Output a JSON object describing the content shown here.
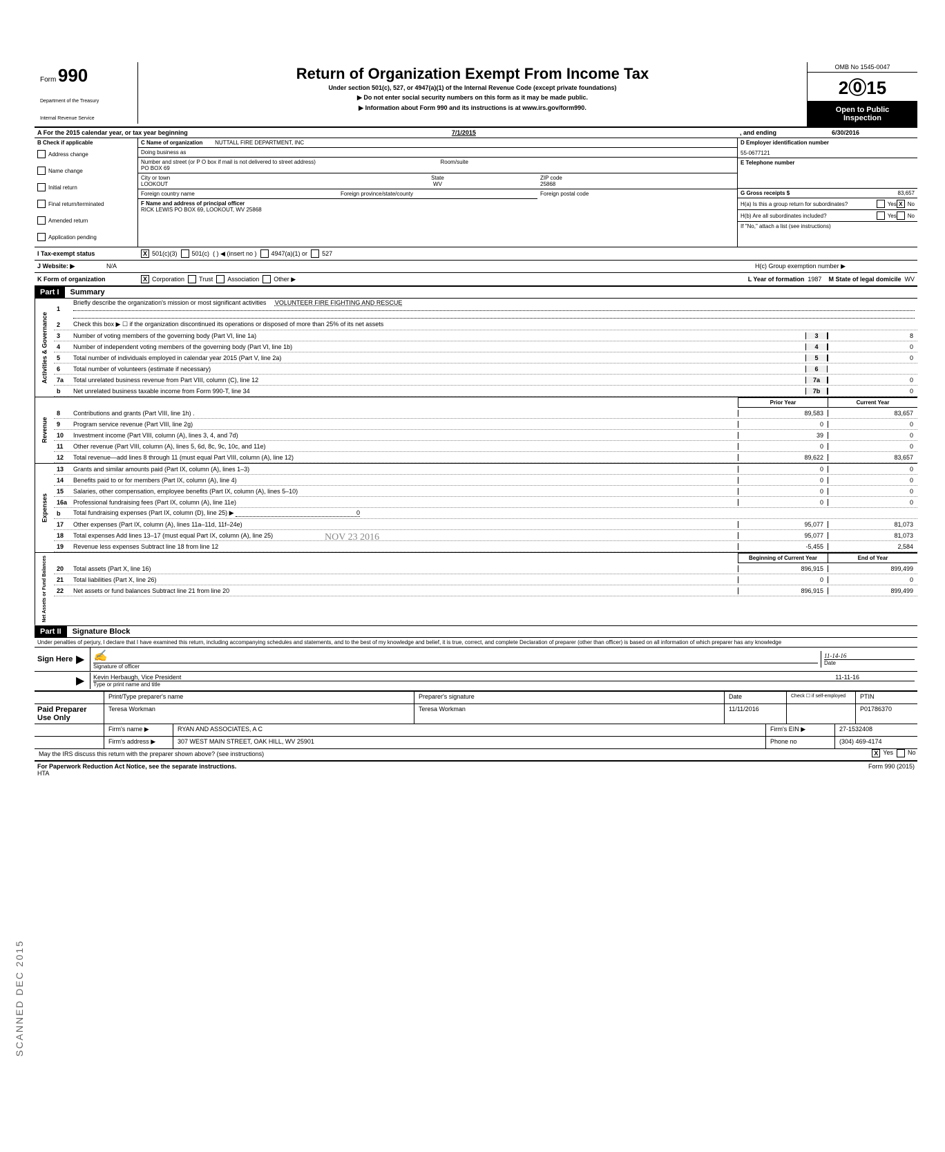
{
  "form": {
    "number": "990",
    "prefix": "Form",
    "title": "Return of Organization Exempt From Income Tax",
    "subtitle": "Under section 501(c), 527, or 4947(a)(1) of the Internal Revenue Code (except private foundations)",
    "instr1": "▶  Do not enter social security numbers on this form as it may be made public.",
    "instr2": "▶  Information about Form 990 and its instructions is at www.irs.gov/form990.",
    "dept1": "Department of the Treasury",
    "dept2": "Internal Revenue Service",
    "omb": "OMB No 1545-0047",
    "year": "2015",
    "year_outline": "2⓪15",
    "open1": "Open to Public",
    "open2": "Inspection"
  },
  "rowA": {
    "label": "A  For the 2015 calendar year, or tax year beginning",
    "begin": "7/1/2015",
    "mid": ", and ending",
    "end": "6/30/2016"
  },
  "B": {
    "header": "B  Check if applicable",
    "items": [
      "Address change",
      "Name change",
      "Initial return",
      "Final return/terminated",
      "Amended return",
      "Application pending"
    ]
  },
  "C": {
    "name_label": "C  Name of organization",
    "name": "NUTTALL FIRE DEPARTMENT, INC",
    "dba_label": "Doing business as",
    "dba": "",
    "addr_label": "Number and street (or P O  box if mail is not delivered to street address)",
    "addr": "PO BOX 69",
    "room_label": "Room/suite",
    "city_label": "City or town",
    "city": "LOOKOUT",
    "state_label": "State",
    "state": "WV",
    "zip_label": "ZIP code",
    "zip": "25868",
    "foreign_country": "Foreign country name",
    "foreign_prov": "Foreign province/state/county",
    "foreign_postal": "Foreign postal code"
  },
  "D": {
    "label": "D  Employer identification number",
    "ein": "55-0677121",
    "E_label": "E  Telephone number",
    "G_label": "G  Gross receipts $",
    "G_value": "83,657"
  },
  "F": {
    "label": "F  Name and address of principal officer",
    "value": "RICK LEWIS PO BOX 69, LOOKOUT, WV  25868"
  },
  "H": {
    "a": "H(a) Is this a group return for subordinates?",
    "a_yes": "Yes",
    "a_no": "No",
    "a_checked": "X",
    "b": "H(b) Are all subordinates included?",
    "b_yes": "Yes",
    "b_no": "No",
    "b_note": "If \"No,\" attach a list (see instructions)",
    "c": "H(c) Group exemption number ▶"
  },
  "I": {
    "label": "I    Tax-exempt status",
    "c3_checked": "X",
    "items": [
      "501(c)(3)",
      "501(c)",
      "(          ) ◀ (insert no )",
      "4947(a)(1) or",
      "527"
    ]
  },
  "J": {
    "label": "J  Website: ▶",
    "value": "N/A"
  },
  "K": {
    "label": "K  Form of organization",
    "corp_checked": "X",
    "items": [
      "Corporation",
      "Trust",
      "Association",
      "Other ▶"
    ],
    "L_label": "L Year of formation",
    "L_value": "1987",
    "M_label": "M State of legal domicile",
    "M_value": "WV"
  },
  "part1": {
    "label": "Part I",
    "title": "Summary"
  },
  "summary": {
    "line1_label": "Briefly describe the organization's mission or most significant activities",
    "line1_value": "VOLUNTEER FIRE FIGHTING AND RESCUE",
    "line2": "Check this box  ▶ ☐  if the organization discontinued its operations or disposed of more than 25% of its net assets",
    "lines_gov": [
      {
        "n": "3",
        "t": "Number of voting members of the governing body (Part VI, line 1a)",
        "box": "3",
        "v": "8"
      },
      {
        "n": "4",
        "t": "Number of independent voting members of the governing body (Part VI, line 1b)",
        "box": "4",
        "v": "0"
      },
      {
        "n": "5",
        "t": "Total number of individuals employed in calendar year 2015 (Part V, line 2a)",
        "box": "5",
        "v": "0"
      },
      {
        "n": "6",
        "t": "Total number of volunteers (estimate if necessary)",
        "box": "6",
        "v": ""
      },
      {
        "n": "7a",
        "t": "Total unrelated business revenue from Part VIII, column (C), line 12",
        "box": "7a",
        "v": "0"
      },
      {
        "n": "b",
        "t": "Net unrelated business taxable income from Form 990-T, line 34",
        "box": "7b",
        "v": "0"
      }
    ],
    "col_prior": "Prior Year",
    "col_current": "Current Year",
    "lines_rev": [
      {
        "n": "8",
        "t": "Contributions and grants (Part VIII, line 1h) .",
        "p": "89,583",
        "c": "83,657"
      },
      {
        "n": "9",
        "t": "Program service revenue (Part VIII, line 2g)",
        "p": "0",
        "c": "0"
      },
      {
        "n": "10",
        "t": "Investment income (Part VIII, column (A), lines 3, 4, and 7d)",
        "p": "39",
        "c": "0"
      },
      {
        "n": "11",
        "t": "Other revenue (Part VIII, column (A), lines 5, 6d, 8c, 9c, 10c, and 11e)",
        "p": "0",
        "c": "0"
      },
      {
        "n": "12",
        "t": "Total revenue—add lines 8 through 11 (must equal Part VIII, column (A), line 12)",
        "p": "89,622",
        "c": "83,657"
      }
    ],
    "lines_exp": [
      {
        "n": "13",
        "t": "Grants and similar amounts paid (Part IX, column (A), lines 1–3)",
        "p": "0",
        "c": "0"
      },
      {
        "n": "14",
        "t": "Benefits paid to or for members (Part IX, column (A), line 4)",
        "p": "0",
        "c": "0"
      },
      {
        "n": "15",
        "t": "Salaries, other compensation, employee benefits (Part IX, column (A), lines 5–10)",
        "p": "0",
        "c": "0"
      },
      {
        "n": "16a",
        "t": "Professional fundraising fees (Part IX, column (A), line 11e)",
        "p": "0",
        "c": "0"
      },
      {
        "n": "b",
        "t": "Total fundraising expenses (Part IX, column (D), line 25)  ▶",
        "p": "",
        "c": "",
        "inline": "0"
      },
      {
        "n": "17",
        "t": "Other expenses (Part IX, column (A), lines 11a–11d, 11f–24e)",
        "p": "95,077",
        "c": "81,073"
      },
      {
        "n": "18",
        "t": "Total expenses  Add lines 13–17 (must equal Part IX, column (A), line 25)",
        "p": "95,077",
        "c": "81,073"
      },
      {
        "n": "19",
        "t": "Revenue less expenses  Subtract line 18 from line 12",
        "p": "-5,455",
        "c": "2,584"
      }
    ],
    "col_begin": "Beginning of Current Year",
    "col_end": "End of Year",
    "lines_net": [
      {
        "n": "20",
        "t": "Total assets (Part X, line 16)",
        "p": "896,915",
        "c": "899,499"
      },
      {
        "n": "21",
        "t": "Total liabilities (Part X, line 26)",
        "p": "0",
        "c": "0"
      },
      {
        "n": "22",
        "t": "Net assets or fund balances  Subtract line 21 from line 20",
        "p": "896,915",
        "c": "899,499"
      }
    ],
    "side_gov": "Activities & Governance",
    "side_rev": "Revenue",
    "side_exp": "Expenses",
    "side_net": "Net Assets or Fund Balances",
    "stamp": "NOV 23 2016"
  },
  "part2": {
    "label": "Part II",
    "title": "Signature Block"
  },
  "penalties": "Under penalties of perjury, I declare that I have examined this return, including accompanying schedules and statements, and to the best of my knowledge and belief, it is true, correct, and complete  Declaration of preparer (other than officer) is based on all information of which preparer has any knowledge",
  "sign": {
    "here": "Sign Here",
    "sig_label": "Signature of officer",
    "date_label": "Date",
    "date_value": "11-14-16",
    "name": "Kevin Herbaugh, Vice President",
    "name_date": "11-11-16",
    "name_label": "Type or print name and title"
  },
  "paid": {
    "label": "Paid Preparer Use Only",
    "h1": "Print/Type preparer's name",
    "h2": "Preparer's signature",
    "h3": "Date",
    "h4": "Check ☐ if self-employed",
    "h5": "PTIN",
    "name": "Teresa Workman",
    "sig": "Teresa Workman",
    "date": "11/11/2016",
    "ptin": "P01786370",
    "firm_label": "Firm's name   ▶",
    "firm": "RYAN AND ASSOCIATES, A C",
    "ein_label": "Firm's EIN ▶",
    "ein": "27-1532408",
    "addr_label": "Firm's address ▶",
    "addr": "307 WEST MAIN STREET, OAK HILL, WV 25901",
    "phone_label": "Phone no",
    "phone": "(304) 469-4174",
    "discuss": "May the IRS discuss this return with the preparer shown above? (see instructions)",
    "yes": "Yes",
    "no": "No",
    "yes_checked": "X"
  },
  "footer": {
    "left": "For Paperwork Reduction Act Notice, see the separate instructions.",
    "hta": "HTA",
    "right": "Form 990 (2015)"
  },
  "scanned": "SCANNED DEC    2015"
}
